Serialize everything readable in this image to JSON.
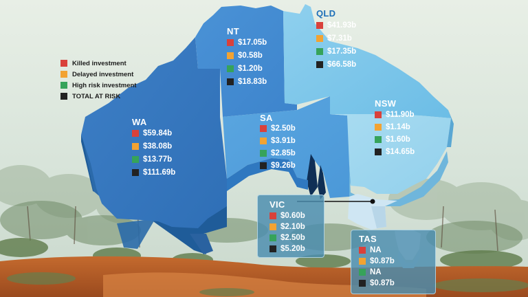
{
  "colors": {
    "killed": "#d9413b",
    "delayed": "#f2a332",
    "high_risk": "#36a35a",
    "total": "#222222"
  },
  "legend": {
    "killed": "Killed investment",
    "delayed": "Delayed investment",
    "high_risk": "High risk investment",
    "total": "TOTAL AT RISK"
  },
  "states": {
    "wa": {
      "name": "WA",
      "killed": "$59.84b",
      "delayed": "$38.08b",
      "high_risk": "$13.77b",
      "total": "$111.69b"
    },
    "nt": {
      "name": "NT",
      "killed": "$17.05b",
      "delayed": "$0.58b",
      "high_risk": "$1.20b",
      "total": "$18.83b"
    },
    "qld": {
      "name": "QLD",
      "killed": "$41.93b",
      "delayed": "$7.31b",
      "high_risk": "$17.35b",
      "total": "$66.58b"
    },
    "sa": {
      "name": "SA",
      "killed": "$2.50b",
      "delayed": "$3.91b",
      "high_risk": "$2.85b",
      "total": "$9.26b"
    },
    "nsw": {
      "name": "NSW",
      "killed": "$11.90b",
      "delayed": "$1.14b",
      "high_risk": "$1.60b",
      "total": "$14.65b"
    },
    "vic": {
      "name": "VIC",
      "killed": "$0.60b",
      "delayed": "$2.10b",
      "high_risk": "$2.50b",
      "total": "$5.20b"
    },
    "tas": {
      "name": "TAS",
      "killed": "NA",
      "delayed": "$0.87b",
      "high_risk": "NA",
      "total": "$0.87b"
    }
  }
}
